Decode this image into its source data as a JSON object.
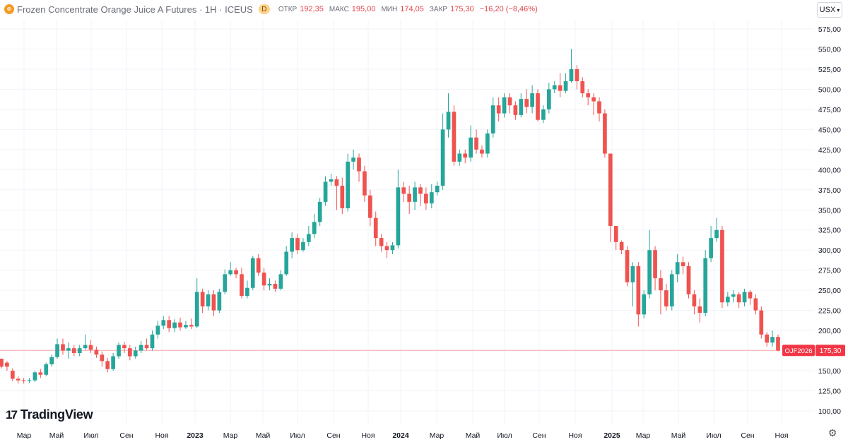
{
  "header": {
    "title": "Frozen Concentrate Orange Juice A Futures · 1H · ICEUS",
    "badge": "D",
    "ohlc": [
      {
        "label": "ОТКР",
        "value": "192,35"
      },
      {
        "label": "МАКС",
        "value": "195,00"
      },
      {
        "label": "МИН",
        "value": "174,05"
      },
      {
        "label": "ЗАКР",
        "value": "175,30"
      },
      {
        "label": "",
        "value": "−16,20 (−8,46%)"
      }
    ]
  },
  "currency_button": "USX",
  "price_tag": {
    "symbol": "OJF2026",
    "value": "175,30"
  },
  "logo": "TradingView",
  "colors": {
    "up": "#26a69a",
    "down": "#ef5350",
    "grid": "#f0f3fa",
    "price_line": "#f7a8ab"
  },
  "chart_data": {
    "type": "candlestick",
    "yaxis": {
      "ticks": [
        100,
        125,
        150,
        175,
        200,
        225,
        250,
        275,
        300,
        325,
        350,
        375,
        400,
        425,
        450,
        475,
        500,
        525,
        550,
        575
      ],
      "tick_labels": [
        "100,00",
        "125,00",
        "150,00",
        "175,00",
        "200,00",
        "225,00",
        "250,00",
        "275,00",
        "300,00",
        "325,00",
        "350,00",
        "375,00",
        "400,00",
        "425,00",
        "450,00",
        "475,00",
        "500,00",
        "525,00",
        "550,00",
        "575,00"
      ],
      "range": [
        80,
        590
      ]
    },
    "xaxis": {
      "labels": [
        "Мар",
        "Май",
        "Июл",
        "Сен",
        "Ноя",
        "2023",
        "Мар",
        "Май",
        "Июл",
        "Сен",
        "Ноя",
        "2024",
        "Мар",
        "Май",
        "Июл",
        "Сен",
        "Ноя",
        "2025",
        "Мар",
        "Май",
        "Июл",
        "Сен",
        "Ноя"
      ],
      "bold": [
        false,
        false,
        false,
        false,
        false,
        true,
        false,
        false,
        false,
        false,
        false,
        true,
        false,
        false,
        false,
        false,
        false,
        true,
        false,
        false,
        false,
        false,
        false
      ]
    },
    "last_price": 175.3,
    "candles": [
      [
        165,
        155,
        158,
        153
      ],
      [
        160,
        155,
        162,
        150
      ],
      [
        150,
        140,
        153,
        137
      ],
      [
        140,
        138,
        143,
        134
      ],
      [
        138,
        137,
        141,
        134
      ],
      [
        137,
        138,
        141,
        135
      ],
      [
        138,
        148,
        150,
        136
      ],
      [
        148,
        145,
        152,
        141
      ],
      [
        145,
        158,
        160,
        143
      ],
      [
        158,
        167,
        170,
        155
      ],
      [
        167,
        183,
        190,
        165
      ],
      [
        183,
        175,
        190,
        170
      ],
      [
        175,
        178,
        185,
        165
      ],
      [
        178,
        172,
        182,
        168
      ],
      [
        172,
        178,
        182,
        168
      ],
      [
        178,
        182,
        195,
        176
      ],
      [
        182,
        176,
        188,
        172
      ],
      [
        176,
        170,
        180,
        166
      ],
      [
        170,
        162,
        174,
        155
      ],
      [
        162,
        152,
        166,
        148
      ],
      [
        152,
        168,
        172,
        150
      ],
      [
        168,
        182,
        185,
        165
      ],
      [
        182,
        178,
        186,
        172
      ],
      [
        178,
        168,
        182,
        163
      ],
      [
        168,
        175,
        180,
        165
      ],
      [
        175,
        182,
        187,
        172
      ],
      [
        182,
        178,
        190,
        176
      ],
      [
        178,
        195,
        200,
        175
      ],
      [
        195,
        206,
        212,
        190
      ],
      [
        206,
        213,
        218,
        202
      ],
      [
        213,
        203,
        218,
        198
      ],
      [
        203,
        210,
        214,
        198
      ],
      [
        210,
        204,
        216,
        200
      ],
      [
        204,
        207,
        212,
        202
      ],
      [
        207,
        205,
        215,
        202
      ],
      [
        205,
        248,
        265,
        203
      ],
      [
        248,
        230,
        252,
        222
      ],
      [
        230,
        245,
        250,
        225
      ],
      [
        245,
        225,
        250,
        218
      ],
      [
        225,
        248,
        252,
        222
      ],
      [
        248,
        270,
        276,
        245
      ],
      [
        270,
        275,
        285,
        268
      ],
      [
        275,
        270,
        278,
        265
      ],
      [
        270,
        243,
        278,
        240
      ],
      [
        243,
        253,
        262,
        240
      ],
      [
        253,
        290,
        293,
        250
      ],
      [
        290,
        272,
        295,
        268
      ],
      [
        272,
        256,
        278,
        250
      ],
      [
        256,
        258,
        265,
        250
      ],
      [
        258,
        252,
        262,
        248
      ],
      [
        252,
        270,
        275,
        250
      ],
      [
        270,
        298,
        305,
        268
      ],
      [
        298,
        315,
        322,
        290
      ],
      [
        315,
        300,
        320,
        295
      ],
      [
        300,
        310,
        315,
        298
      ],
      [
        310,
        320,
        330,
        305
      ],
      [
        320,
        335,
        345,
        315
      ],
      [
        335,
        360,
        365,
        330
      ],
      [
        360,
        385,
        392,
        355
      ],
      [
        385,
        388,
        395,
        380
      ],
      [
        388,
        380,
        392,
        350
      ],
      [
        380,
        352,
        390,
        345
      ],
      [
        352,
        410,
        420,
        348
      ],
      [
        410,
        415,
        425,
        400
      ],
      [
        415,
        398,
        420,
        385
      ],
      [
        398,
        368,
        405,
        360
      ],
      [
        368,
        340,
        375,
        330
      ],
      [
        340,
        315,
        348,
        305
      ],
      [
        315,
        305,
        320,
        298
      ],
      [
        305,
        300,
        310,
        290
      ],
      [
        300,
        306,
        310,
        295
      ],
      [
        306,
        378,
        400,
        302
      ],
      [
        378,
        370,
        385,
        360
      ],
      [
        370,
        360,
        380,
        345
      ],
      [
        360,
        378,
        385,
        350
      ],
      [
        378,
        370,
        382,
        355
      ],
      [
        370,
        358,
        378,
        350
      ],
      [
        358,
        372,
        382,
        352
      ],
      [
        372,
        380,
        385,
        368
      ],
      [
        380,
        450,
        470,
        375
      ],
      [
        450,
        472,
        495,
        440
      ],
      [
        472,
        410,
        480,
        405
      ],
      [
        410,
        420,
        425,
        405
      ],
      [
        420,
        415,
        425,
        408
      ],
      [
        415,
        440,
        455,
        410
      ],
      [
        440,
        425,
        450,
        420
      ],
      [
        425,
        420,
        430,
        415
      ],
      [
        420,
        445,
        450,
        415
      ],
      [
        445,
        480,
        490,
        440
      ],
      [
        480,
        470,
        490,
        460
      ],
      [
        470,
        490,
        495,
        465
      ],
      [
        490,
        480,
        495,
        470
      ],
      [
        480,
        468,
        485,
        462
      ],
      [
        468,
        488,
        495,
        465
      ],
      [
        488,
        478,
        500,
        470
      ],
      [
        478,
        495,
        505,
        470
      ],
      [
        495,
        462,
        500,
        460
      ],
      [
        462,
        475,
        480,
        458
      ],
      [
        475,
        500,
        508,
        470
      ],
      [
        500,
        505,
        510,
        495
      ],
      [
        505,
        498,
        520,
        490
      ],
      [
        498,
        510,
        520,
        495
      ],
      [
        510,
        525,
        550,
        508
      ],
      [
        525,
        510,
        530,
        500
      ],
      [
        510,
        495,
        515,
        490
      ],
      [
        495,
        490,
        500,
        480
      ],
      [
        490,
        485,
        495,
        468
      ],
      [
        485,
        470,
        490,
        460
      ],
      [
        470,
        420,
        475,
        415
      ],
      [
        420,
        330,
        340,
        310
      ],
      [
        330,
        310,
        320,
        300
      ],
      [
        310,
        300,
        312,
        295
      ],
      [
        300,
        260,
        305,
        255
      ],
      [
        260,
        280,
        285,
        230
      ],
      [
        280,
        220,
        285,
        205
      ],
      [
        220,
        245,
        250,
        215
      ],
      [
        245,
        300,
        325,
        240
      ],
      [
        300,
        265,
        305,
        250
      ],
      [
        265,
        250,
        275,
        220
      ],
      [
        250,
        230,
        258,
        225
      ],
      [
        230,
        270,
        275,
        225
      ],
      [
        270,
        285,
        295,
        260
      ],
      [
        285,
        280,
        292,
        270
      ],
      [
        280,
        245,
        285,
        240
      ],
      [
        245,
        230,
        250,
        220
      ],
      [
        230,
        222,
        240,
        210
      ],
      [
        222,
        290,
        300,
        218
      ],
      [
        290,
        315,
        330,
        285
      ],
      [
        315,
        325,
        340,
        310
      ],
      [
        325,
        235,
        330,
        228
      ],
      [
        235,
        242,
        248,
        230
      ],
      [
        242,
        245,
        250,
        235
      ],
      [
        245,
        235,
        248,
        228
      ],
      [
        235,
        248,
        252,
        230
      ],
      [
        248,
        240,
        250,
        232
      ],
      [
        240,
        225,
        245,
        220
      ],
      [
        225,
        195,
        230,
        190
      ],
      [
        195,
        185,
        198,
        180
      ],
      [
        185,
        192,
        200,
        180
      ],
      [
        192,
        175,
        195,
        174
      ]
    ]
  }
}
